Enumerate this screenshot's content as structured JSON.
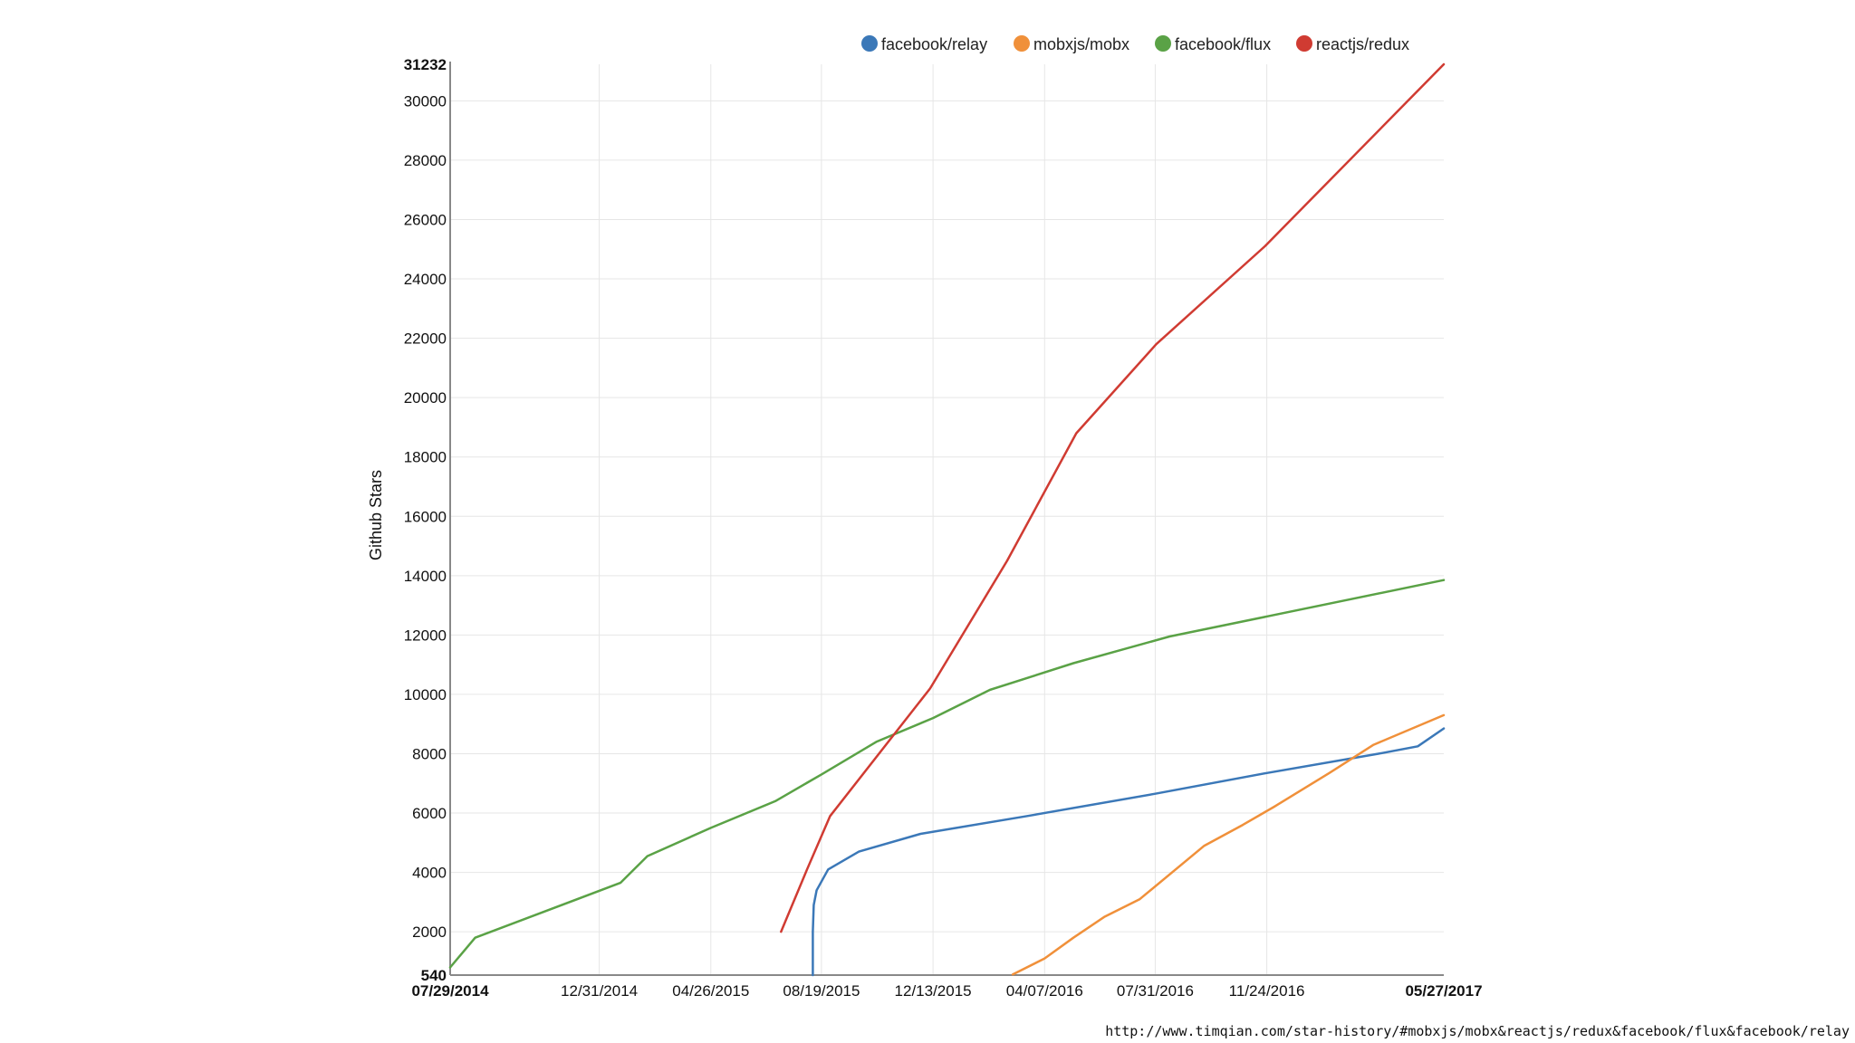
{
  "source_url": "http://www.timqian.com/star-history/#mobxjs/mobx&reactjs/redux&facebook/flux&facebook/relay",
  "chart_data": {
    "type": "line",
    "ylabel": "Github Stars",
    "xlabel": "",
    "ylim": [
      540,
      31232
    ],
    "xlim": [
      "2014-07-29",
      "2017-05-27"
    ],
    "grid": true,
    "legend_position": "top",
    "y_ticks": [
      2000,
      4000,
      6000,
      8000,
      10000,
      12000,
      14000,
      16000,
      18000,
      20000,
      22000,
      24000,
      26000,
      28000,
      30000
    ],
    "y_bound_labels": [
      "540",
      "31232"
    ],
    "x_ticks": [
      {
        "date": "2014-07-29",
        "label": "07/29/2014",
        "bold": true
      },
      {
        "date": "2014-12-31",
        "label": "12/31/2014",
        "bold": false
      },
      {
        "date": "2015-04-26",
        "label": "04/26/2015",
        "bold": false
      },
      {
        "date": "2015-08-19",
        "label": "08/19/2015",
        "bold": false
      },
      {
        "date": "2015-12-13",
        "label": "12/13/2015",
        "bold": false
      },
      {
        "date": "2016-04-07",
        "label": "04/07/2016",
        "bold": false
      },
      {
        "date": "2016-07-31",
        "label": "07/31/2016",
        "bold": false
      },
      {
        "date": "2016-11-24",
        "label": "11/24/2016",
        "bold": false
      },
      {
        "date": "2017-05-27",
        "label": "05/27/2017",
        "bold": true
      }
    ],
    "series": [
      {
        "name": "facebook/relay",
        "color": "#3b78b8",
        "points": [
          [
            "2015-08-10",
            540
          ],
          [
            "2015-08-10",
            2000
          ],
          [
            "2015-08-11",
            2900
          ],
          [
            "2015-08-14",
            3400
          ],
          [
            "2015-08-26",
            4100
          ],
          [
            "2015-09-27",
            4700
          ],
          [
            "2015-11-30",
            5300
          ],
          [
            "2016-03-20",
            5900
          ],
          [
            "2016-07-31",
            6650
          ],
          [
            "2016-11-24",
            7350
          ],
          [
            "2017-03-20",
            8000
          ],
          [
            "2017-04-30",
            8250
          ],
          [
            "2017-05-27",
            8850
          ]
        ]
      },
      {
        "name": "mobxjs/mobx",
        "color": "#f0903a",
        "points": [
          [
            "2016-03-05",
            560
          ],
          [
            "2016-04-07",
            1100
          ],
          [
            "2016-05-07",
            1800
          ],
          [
            "2016-06-08",
            2500
          ],
          [
            "2016-07-15",
            3100
          ],
          [
            "2016-09-20",
            4900
          ],
          [
            "2016-10-30",
            5600
          ],
          [
            "2016-12-01",
            6200
          ],
          [
            "2017-01-28",
            7350
          ],
          [
            "2017-03-15",
            8300
          ],
          [
            "2017-05-27",
            9300
          ]
        ]
      },
      {
        "name": "facebook/flux",
        "color": "#5aa246",
        "points": [
          [
            "2014-07-29",
            800
          ],
          [
            "2014-08-24",
            1800
          ],
          [
            "2015-01-22",
            3650
          ],
          [
            "2015-02-19",
            4550
          ],
          [
            "2015-04-26",
            5500
          ],
          [
            "2015-07-02",
            6400
          ],
          [
            "2015-08-19",
            7300
          ],
          [
            "2015-10-15",
            8400
          ],
          [
            "2015-12-13",
            9200
          ],
          [
            "2016-02-10",
            10150
          ],
          [
            "2016-05-07",
            11050
          ],
          [
            "2016-08-15",
            11950
          ],
          [
            "2017-05-27",
            13850
          ]
        ]
      },
      {
        "name": "reactjs/redux",
        "color": "#d03b32",
        "points": [
          [
            "2015-07-08",
            2000
          ],
          [
            "2015-08-04",
            4100
          ],
          [
            "2015-08-28",
            5900
          ],
          [
            "2015-12-10",
            10200
          ],
          [
            "2016-02-28",
            14500
          ],
          [
            "2016-05-10",
            18800
          ],
          [
            "2016-08-01",
            21800
          ],
          [
            "2016-11-22",
            25100
          ],
          [
            "2017-05-27",
            31232
          ]
        ]
      }
    ]
  }
}
